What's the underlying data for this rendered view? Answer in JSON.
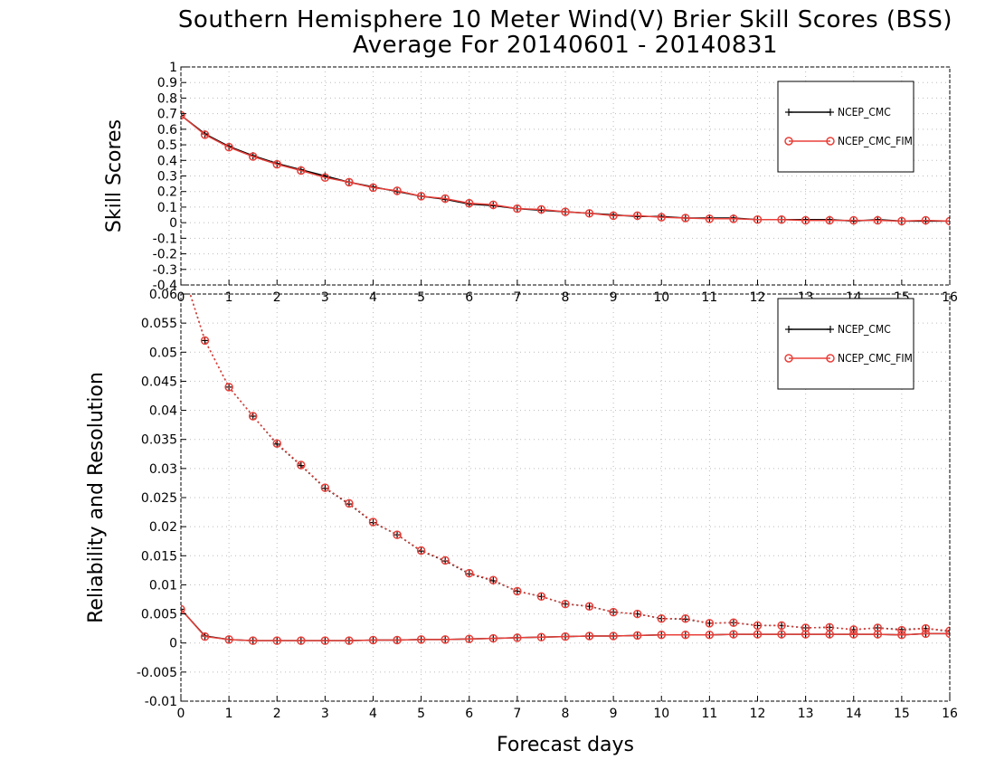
{
  "title": "Southern Hemisphere 10 Meter Wind(V) Brier Skill Scores (BSS)",
  "subtitle": "Average For 20140601 - 20140831",
  "colors": {
    "ncep_cmc": "#000000",
    "ncep_cmc_fim": "#e8403a",
    "grid": "#bbbbbb"
  },
  "chart_data": [
    {
      "type": "line",
      "ylabel": "Skill Scores",
      "xlabel": "",
      "xlim": [
        0,
        16
      ],
      "ylim": [
        -0.4,
        1
      ],
      "x_ticks": [
        "0",
        "1",
        "2",
        "3",
        "4",
        "5",
        "6",
        "7",
        "8",
        "9",
        "10",
        "11",
        "12",
        "13",
        "14",
        "15",
        "16"
      ],
      "y_ticks": [
        "-0.4",
        "-0.3",
        "-0.2",
        "-0.1",
        "0",
        "0.1",
        "0.2",
        "0.3",
        "0.4",
        "0.5",
        "0.6",
        "0.7",
        "0.8",
        "0.9",
        "1"
      ],
      "grid": true,
      "legend_position": "top-right",
      "x": [
        0,
        0.5,
        1,
        1.5,
        2,
        2.5,
        3,
        3.5,
        4,
        4.5,
        5,
        5.5,
        6,
        6.5,
        7,
        7.5,
        8,
        8.5,
        9,
        9.5,
        10,
        10.5,
        11,
        11.5,
        12,
        12.5,
        13,
        13.5,
        14,
        14.5,
        15,
        15.5,
        16
      ],
      "series": [
        {
          "name": "NCEP_CMC",
          "style": "solid",
          "marker": "plus",
          "values": [
            0.69,
            0.57,
            0.49,
            0.43,
            0.38,
            0.34,
            0.3,
            0.26,
            0.23,
            0.2,
            0.17,
            0.15,
            0.12,
            0.11,
            0.09,
            0.08,
            0.07,
            0.06,
            0.05,
            0.04,
            0.04,
            0.03,
            0.03,
            0.03,
            0.02,
            0.02,
            0.02,
            0.02,
            0.01,
            0.02,
            0.01,
            0.01,
            0.01
          ]
        },
        {
          "name": "NCEP_CMC_FIM",
          "style": "solid",
          "marker": "circle",
          "values": [
            0.69,
            0.565,
            0.485,
            0.425,
            0.375,
            0.335,
            0.29,
            0.26,
            0.225,
            0.205,
            0.17,
            0.155,
            0.125,
            0.115,
            0.09,
            0.085,
            0.07,
            0.06,
            0.045,
            0.045,
            0.035,
            0.03,
            0.025,
            0.025,
            0.02,
            0.02,
            0.015,
            0.015,
            0.015,
            0.015,
            0.01,
            0.015,
            0.01
          ]
        }
      ]
    },
    {
      "type": "line",
      "ylabel": "Reliability and Resolution",
      "xlabel": "Forecast days",
      "xlim": [
        0,
        16
      ],
      "ylim": [
        -0.01,
        0.06
      ],
      "x_ticks": [
        "0",
        "1",
        "2",
        "3",
        "4",
        "5",
        "6",
        "7",
        "8",
        "9",
        "10",
        "11",
        "12",
        "13",
        "14",
        "15",
        "16"
      ],
      "y_ticks": [
        "-0.01",
        "-0.005",
        "0",
        "0.005",
        "0.01",
        "0.015",
        "0.02",
        "0.025",
        "0.03",
        "0.035",
        "0.04",
        "0.045",
        "0.05",
        "0.055",
        "0.06"
      ],
      "grid": true,
      "legend_position": "top-right",
      "x": [
        0,
        0.5,
        1,
        1.5,
        2,
        2.5,
        3,
        3.5,
        4,
        4.5,
        5,
        5.5,
        6,
        6.5,
        7,
        7.5,
        8,
        8.5,
        9,
        9.5,
        10,
        10.5,
        11,
        11.5,
        12,
        12.5,
        13,
        13.5,
        14,
        14.5,
        15,
        15.5,
        16
      ],
      "series": [
        {
          "name": "NCEP_CMC",
          "metric": "resolution",
          "style": "dotted",
          "marker": "plus",
          "values": [
            0.065,
            0.052,
            0.044,
            0.039,
            0.0342,
            0.0305,
            0.0266,
            0.0239,
            0.0207,
            0.0186,
            0.0158,
            0.0141,
            0.0119,
            0.0107,
            0.0089,
            0.008,
            0.0067,
            0.0063,
            0.0053,
            0.005,
            0.0042,
            0.0041,
            0.0034,
            0.0035,
            0.003,
            0.003,
            0.0026,
            0.0027,
            0.0023,
            0.0026,
            0.0023,
            0.0025,
            0.002
          ]
        },
        {
          "name": "NCEP_CMC",
          "metric": "reliability",
          "style": "solid",
          "marker": "plus",
          "values": [
            0.0058,
            0.0012,
            0.0006,
            0.0004,
            0.0004,
            0.0004,
            0.0004,
            0.0004,
            0.0005,
            0.0005,
            0.0006,
            0.0006,
            0.0007,
            0.0008,
            0.0009,
            0.001,
            0.0011,
            0.0012,
            0.0012,
            0.0013,
            0.0014,
            0.0014,
            0.0014,
            0.0015,
            0.0015,
            0.0015,
            0.0015,
            0.0015,
            0.0015,
            0.0015,
            0.0014,
            0.0016,
            0.0016
          ]
        },
        {
          "name": "NCEP_CMC_FIM",
          "metric": "resolution",
          "style": "dotted",
          "marker": "circle",
          "values": [
            0.065,
            0.052,
            0.044,
            0.039,
            0.0343,
            0.0306,
            0.0267,
            0.024,
            0.0208,
            0.0186,
            0.0159,
            0.0142,
            0.012,
            0.0108,
            0.0089,
            0.008,
            0.0067,
            0.0063,
            0.0053,
            0.005,
            0.0042,
            0.0042,
            0.0034,
            0.0035,
            0.003,
            0.003,
            0.0026,
            0.0027,
            0.0023,
            0.0026,
            0.0022,
            0.0025,
            0.0021
          ]
        },
        {
          "name": "NCEP_CMC_FIM",
          "metric": "reliability",
          "style": "solid",
          "marker": "circle",
          "values": [
            0.0058,
            0.0011,
            0.0006,
            0.0004,
            0.0004,
            0.0004,
            0.0004,
            0.0004,
            0.0005,
            0.0005,
            0.0006,
            0.0006,
            0.0007,
            0.0008,
            0.0009,
            0.001,
            0.0011,
            0.0012,
            0.0012,
            0.0013,
            0.0014,
            0.0014,
            0.0014,
            0.0015,
            0.0015,
            0.0015,
            0.0015,
            0.0015,
            0.0015,
            0.0015,
            0.0014,
            0.0016,
            0.0016
          ]
        }
      ]
    }
  ],
  "legend": [
    {
      "label": "NCEP_CMC"
    },
    {
      "label": "NCEP_CMC_FIM"
    }
  ]
}
